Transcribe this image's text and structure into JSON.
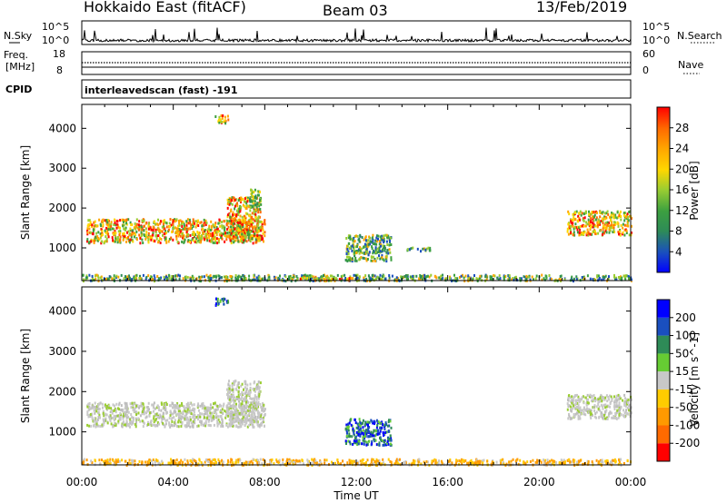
{
  "header": {
    "left_title": "Hokkaido East (fitACF)",
    "center_title": "Beam 03",
    "right_title": "13/Feb/2019"
  },
  "noise_panel": {
    "left_label": "N.Sky",
    "right_label": "N.Search",
    "left_ticks": [
      "10^5",
      "10^0"
    ],
    "right_ticks": [
      "10^5",
      "10^0"
    ]
  },
  "freq_panel": {
    "left_label_1": "Freq.",
    "left_label_2": "[MHz]",
    "left_ticks": [
      "18",
      "8"
    ],
    "right_label": "Nave",
    "right_ticks": [
      "60",
      "0"
    ]
  },
  "cpid": {
    "label": "CPID",
    "text": "interleavedscan (fast) -191"
  },
  "chart_data": [
    {
      "type": "heatmap",
      "title": "",
      "quantity": "Power",
      "xlabel": "",
      "ylabel": "Slant Range [km]",
      "colorbar_label": "Power [dB]",
      "colorbar_ticks": [
        "28",
        "24",
        "20",
        "16",
        "12",
        "8",
        "4"
      ],
      "colorbar_range": [
        0,
        32
      ],
      "colorbar_colors": [
        "#0000ff",
        "#1a4fbf",
        "#2e8b57",
        "#3ca040",
        "#4fc030",
        "#9acd32",
        "#ffd700",
        "#ffa500",
        "#ff6a00",
        "#ff0000"
      ],
      "xlim_hours": [
        0,
        24
      ],
      "ylim": [
        180,
        4600
      ],
      "yticks": [
        1000,
        2000,
        3000,
        4000
      ],
      "xtick_labels": [
        "00:00",
        "04:00",
        "08:00",
        "12:00",
        "16:00",
        "20:00",
        "00:00"
      ],
      "echo_regions": [
        {
          "t0": 0.2,
          "t1": 8.0,
          "r0": 1150,
          "r1": 1750,
          "level": "high"
        },
        {
          "t0": 6.3,
          "t1": 7.8,
          "r0": 1250,
          "r1": 2300,
          "level": "high"
        },
        {
          "t0": 21.2,
          "t1": 24.0,
          "r0": 1350,
          "r1": 1950,
          "level": "high"
        },
        {
          "t0": 0.0,
          "t1": 24.0,
          "r0": 200,
          "r1": 350,
          "level": "low"
        },
        {
          "t0": 9.5,
          "t1": 11.8,
          "r0": 200,
          "r1": 300,
          "level": "high"
        },
        {
          "t0": 5.8,
          "t1": 6.4,
          "r0": 4150,
          "r1": 4350,
          "level": "high"
        },
        {
          "t0": 7.3,
          "t1": 7.8,
          "r0": 2050,
          "r1": 2500,
          "level": "mid"
        },
        {
          "t0": 11.5,
          "t1": 13.5,
          "r0": 700,
          "r1": 1350,
          "level": "low"
        },
        {
          "t0": 14.2,
          "t1": 15.2,
          "r0": 950,
          "r1": 1050,
          "level": "low"
        }
      ]
    },
    {
      "type": "heatmap",
      "title": "",
      "quantity": "Velocity",
      "xlabel": "Time UT",
      "ylabel": "Slant Range [km]",
      "colorbar_label": "Velocity [m s^-1]",
      "colorbar_ticks": [
        "200",
        "100",
        "50",
        "15",
        "-15",
        "-50",
        "-100",
        "-200"
      ],
      "colorbar_range": [
        -250,
        250
      ],
      "colorbar_colors": [
        "#ff0000",
        "#ff6a00",
        "#ff9900",
        "#ffcc00",
        "#c8c8c8",
        "#66cc33",
        "#2e8b57",
        "#1a4fbf",
        "#0000ff"
      ],
      "xlim_hours": [
        0,
        24
      ],
      "ylim": [
        180,
        4600
      ],
      "yticks": [
        1000,
        2000,
        3000,
        4000
      ],
      "xtick_labels": [
        "00:00",
        "04:00",
        "08:00",
        "12:00",
        "16:00",
        "20:00",
        "00:00"
      ],
      "echo_regions": [
        {
          "t0": 0.2,
          "t1": 8.0,
          "r0": 1150,
          "r1": 1750,
          "level": "zero"
        },
        {
          "t0": 6.3,
          "t1": 7.8,
          "r0": 1250,
          "r1": 2300,
          "level": "zero"
        },
        {
          "t0": 21.2,
          "t1": 24.0,
          "r0": 1350,
          "r1": 1950,
          "level": "zero"
        },
        {
          "t0": 0.0,
          "t1": 24.0,
          "r0": 200,
          "r1": 350,
          "level": "neg"
        },
        {
          "t0": 5.8,
          "t1": 6.4,
          "r0": 4150,
          "r1": 4350,
          "level": "pos"
        },
        {
          "t0": 11.5,
          "t1": 13.5,
          "r0": 700,
          "r1": 1350,
          "level": "pos"
        }
      ]
    }
  ]
}
